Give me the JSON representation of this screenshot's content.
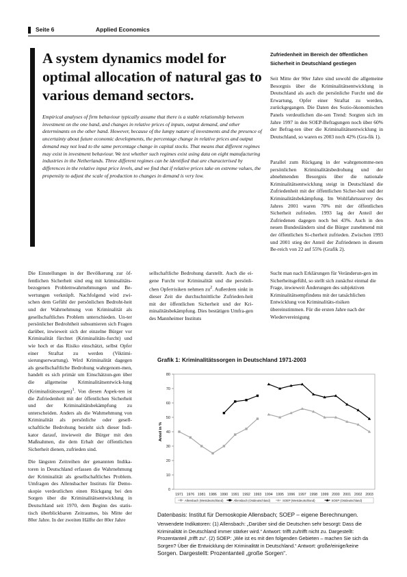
{
  "header": {
    "page": "Seite 6",
    "section": "Applied Economics"
  },
  "article": {
    "title": "A system dynamics model for optimal allocation of natural gas to various demand sectors.",
    "abstract": "Empirical analyses of firm behaviour typically assume that there is a stable relationship between investment on the one hand, and changes in relative prices of inputs, output demand, and other determinants on the other hand. However, because of the lumpy nature of investments and the presence of uncertainty about future economic developments, the percentage change in relative prices and output demand may not lead to the same percentage change in capital stocks. That means that different regimes may exist in investment behaviour. We test whether such regimes exist using data on eight manufacturing industries in the Netherlands. Three different regimes can be identified that are characterised by differences in the relative input price levels, and we find that if relative prices take on extreme values, the propensity to adjust the scale of production to changes in demand is very low."
  },
  "right_column": {
    "heading": "Zufriedenheit im Bereich der öffentlichen Sicherheit in Deutschland gestiegen",
    "p1": "Seit Mitte der 90er Jahre sind sowohl die allgemeine Besorgnis über die Kriminalitätsentwicklung in Deutschland als auch die persönliche Furcht und die Erwartung, Opfer einer Straftat zu werden, zurückgegangen. Die Daten des Sozio-ökonomischen Panels verdeutlichen die-sen Trend: Sorgten sich im Jahre 1997 in den SOEP-Befragungen noch über 60% der Befrag-ten über die Kriminalitätsentwicklung in Deutschland, so waren es 2003 noch 42% (Gra-fik 1).",
    "p2": "Parallel zum Rückgang in der wahrgenomme-nen persönlichen Kriminalitätsbedrohung und der abnehmenden Besorgnis über die nationale Kriminalitätsentwicklung steigt in Deutschland die Zufriedenheit mit der öffentlichen Sicher-heit und der Kriminalitätsbekämpfung. Im Wohlfahrtssurvey des Jahres 2001 waren 70% mit der öffentlichen Sicherheit zufrieden. 1993 lag der Anteil der Zufriedenen dagegen noch bei 43%. Auch in den neuen Bundesländern sind die Bürger zunehmend mit der öffentlichen Si-cherheit zufrieden. Zwischen 1993 und 2001 stieg der Anteil der Zufriedenen in diesem Be-reich von 22 auf 55% (Grafik 2)."
  },
  "body": {
    "col1_p1": "Die Einstellungen in der Bevölkerung zur öf-fentlichen Sicherheit sind eng mit kriminalitäts-bezogenen Problemwahrnehmungen und Be-wertungen verknüpft. Nachfolgend wird zwi-schen dem Gefühl der persönlichen Bedroht-heit und der Wahrnehmung von Kriminalität als gesellschaftliches Problem unterschieden. Un-ter persönlicher Bedrohtheit subsumieren sich Fragen darüber, inwieweit sich der einzelne Bürger vor Kriminalität fürchtet (Kriminalitäts-furcht) und wie hoch er das Risiko einschätzt, selbst Opfer einer Straftat zu werden (Viktimi-sierungserwartung). Wird Kriminalität dagegen als gesellschaftliche Bedrohung wahrgenom-men, handelt es sich primär um Einschätzun-gen über die allgemeine Kriminalitätsentwick-lung (Kriminalitätssorgen)",
    "col1_p1_sup": "1",
    "col1_p1_rest": ". Von diesen Aspek-ten ist die Zufriedenheit mit der öffentlichen Sicherheit und der Kriminalitätsbekämpfung zu unterscheiden. Anders als die Wahrnehmung von Kriminalität als persönliche oder gesell-schaftliche Bedrohung bezieht sich dieser Indi-kator darauf, inwieweit die Bürger mit den Maßnahmen, die dem Erhalt der öffentlichen Sicherheit dienen, zufrieden sind.",
    "col1_p2": "Die längsten Zeitreihen der genannten Indika-toren in Deutschland erfassen die Wahrnehmung der Kriminalität als gesellschaftliches Problem. Umfragen des Allensbacher Instituts für Demo-skopie verdeutlichen einen Rückgang bei den Sorgen über die Kriminalitätsentwicklung in Deutschland seit 1970, dem Beginn des statis-tisch überblickbaren Zeitraumes, bis Mitte der 80er Jahre. In der zweiten Hälfte der 80er Jahre",
    "col2_p1a": "sellschaftliche Bedrohung darstellt. Auch die ei-gene Furcht vor Kriminalität und die persönli-chen Opferrisiken nehmen zu",
    "col2_sup": "2",
    "col2_p1b": ". Außerdem sinkt in dieser Zeit die durchschnittliche Zufrieden-heit mit der öffentlichen Sicherheit und der Kri-minalitätsbekämpfung. Dies bestätigen Umfra-gen des Mannheimer Instituts",
    "col3_p1": "Sucht man nach Erklärungen für Veränderun-gen im Sicherheitsgefühl, so stellt sich zunächst einmal die Frage, inwieweit Änderungen des subjektiven Kriminalitätsempfindens mit der tatsächlichen Entwicklung von Kriminalitäts-risiken übereinstimmen. Für die ersten Jahre nach der Wiedervereinigung"
  },
  "chart_data": {
    "type": "line",
    "title": "Grafik 1: Kriminalitätssorgen in Deutschland 1971-2003",
    "ylabel": "Anteil in %",
    "xlabel": "",
    "ylim": [
      0,
      80
    ],
    "yticks": [
      0,
      10,
      20,
      30,
      40,
      50,
      60,
      70,
      80
    ],
    "categories": [
      "1971",
      "1976",
      "1981",
      "1986",
      "1990",
      "1991",
      "1992",
      "1993",
      "1994",
      "1995",
      "1996",
      "1997",
      "1998",
      "1999",
      "2000",
      "2001",
      "2002",
      "2003"
    ],
    "grid": false,
    "legend_position": "bottom",
    "series": [
      {
        "name": "Allensbach (Westdeutschland)",
        "color": "#a8a8a8",
        "marker": "square",
        "values": [
          40,
          36,
          30,
          25,
          30,
          38,
          42,
          49,
          null,
          null,
          null,
          null,
          null,
          null,
          null,
          null,
          null,
          null
        ]
      },
      {
        "name": "Allensbach (Ostdeutschland)",
        "color": "#000000",
        "marker": "square",
        "values": [
          null,
          null,
          null,
          null,
          53,
          61,
          62,
          65,
          null,
          null,
          null,
          null,
          null,
          null,
          null,
          null,
          null,
          null
        ]
      },
      {
        "name": "SOEP (Westdeutschland)",
        "color": "#a8a8a8",
        "marker": "triangle",
        "values": [
          null,
          null,
          null,
          null,
          null,
          null,
          null,
          null,
          52,
          50,
          53,
          56,
          54,
          50,
          50,
          47,
          45,
          40
        ]
      },
      {
        "name": "SOEP (Ostdeutschland)",
        "color": "#000000",
        "marker": "triangle",
        "values": [
          null,
          null,
          null,
          null,
          null,
          null,
          null,
          null,
          73,
          70,
          72,
          73,
          66,
          64,
          65,
          59,
          55,
          49
        ]
      }
    ]
  },
  "chart_notes": {
    "source": "Datenbasis: Institut für Demoskopie Allensbach; SOEP – eigene Berechnungen.",
    "indicators": "Verwendete Indikatoren: (1) Allensbach: „Darüber sind die Deutschen sehr besorgt: Dass die Kriminalität in Deutschland immer stärker wird.“ Antwort: trifft zu/trifft nicht zu. Dargestellt: Prozentanteil „trifft zu“. (2) SOEP: „Wie ist es mit den folgenden Gebieten – machen Sie sich da Sorgen? Über die Entwicklung der Kriminalität in Deutschland.“ Antwort: große/einige/keine",
    "indicators_end": "Sorgen. Dargestellt: Prozentanteil „große Sorgen“."
  }
}
